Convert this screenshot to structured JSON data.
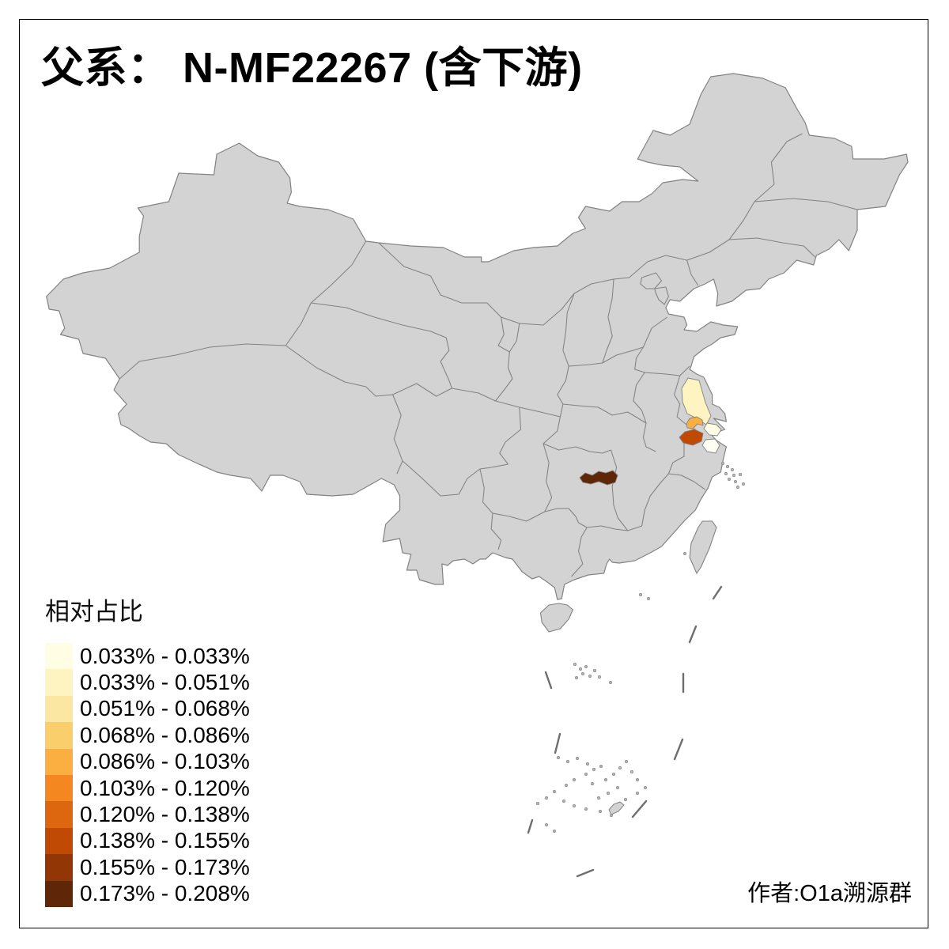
{
  "page": {
    "background": "#FFFFFF",
    "frame_color": "#000000"
  },
  "header": {
    "title": "父系： N-MF22267 (含下游)"
  },
  "legend": {
    "title": "相对占比"
  },
  "footer": {
    "attribution": "作者:O1a溯源群"
  },
  "chart_data": {
    "type": "choropleth",
    "map_region": "China (province outlines, Taiwan, Hainan, South China Sea islands and nine-dash line)",
    "title": "父系： N-MF22267 (含下游)",
    "legend_title": "相对占比",
    "legend_position": "bottom-left",
    "background": "#FFFFFF",
    "base_fill": "#D3D3D3",
    "border_color": "#828282",
    "dash_line_color": "#6E6E6E",
    "bins": [
      {
        "range": "0.033% - 0.033%",
        "color": "#FFFDE3"
      },
      {
        "range": "0.033% - 0.051%",
        "color": "#FDF4C2"
      },
      {
        "range": "0.051% - 0.068%",
        "color": "#FBE7A1"
      },
      {
        "range": "0.068% - 0.086%",
        "color": "#FBCE6C"
      },
      {
        "range": "0.086% - 0.103%",
        "color": "#FBAF40"
      },
      {
        "range": "0.103% - 0.120%",
        "color": "#F4871F"
      },
      {
        "range": "0.120% - 0.138%",
        "color": "#DC670E"
      },
      {
        "range": "0.138% - 0.155%",
        "color": "#C04A03"
      },
      {
        "range": "0.155% - 0.173%",
        "color": "#933605"
      },
      {
        "range": "0.173% - 0.208%",
        "color": "#5F2608"
      }
    ],
    "highlighted_regions": [
      {
        "id": "jiangsu-north-coastal",
        "area": "northern Jiangsu coastal prefecture",
        "bin": "0.033% - 0.051%",
        "color": "#FDF4C2"
      },
      {
        "id": "jiangsu-central-small",
        "area": "small central Jiangsu prefecture",
        "bin": "0.086% - 0.103%",
        "color": "#FBAF40"
      },
      {
        "id": "jiangsu-south",
        "area": "southern Jiangsu prefecture",
        "bin": "0.138% - 0.155%",
        "color": "#C04A03"
      },
      {
        "id": "jiangsu-southeast-coastal",
        "area": "southeast Jiangsu coastal prefecture",
        "bin": "0.033% - 0.033%",
        "color": "#FFFDE3"
      },
      {
        "id": "jiangsu-near-shanghai",
        "area": "Jiangsu prefecture near Shanghai",
        "bin": "0.033% - 0.033%",
        "color": "#FEFEF4"
      },
      {
        "id": "hunan-north",
        "area": "northern Hunan prefecture",
        "bin": "0.173% - 0.208%",
        "color": "#5F2608"
      }
    ]
  }
}
